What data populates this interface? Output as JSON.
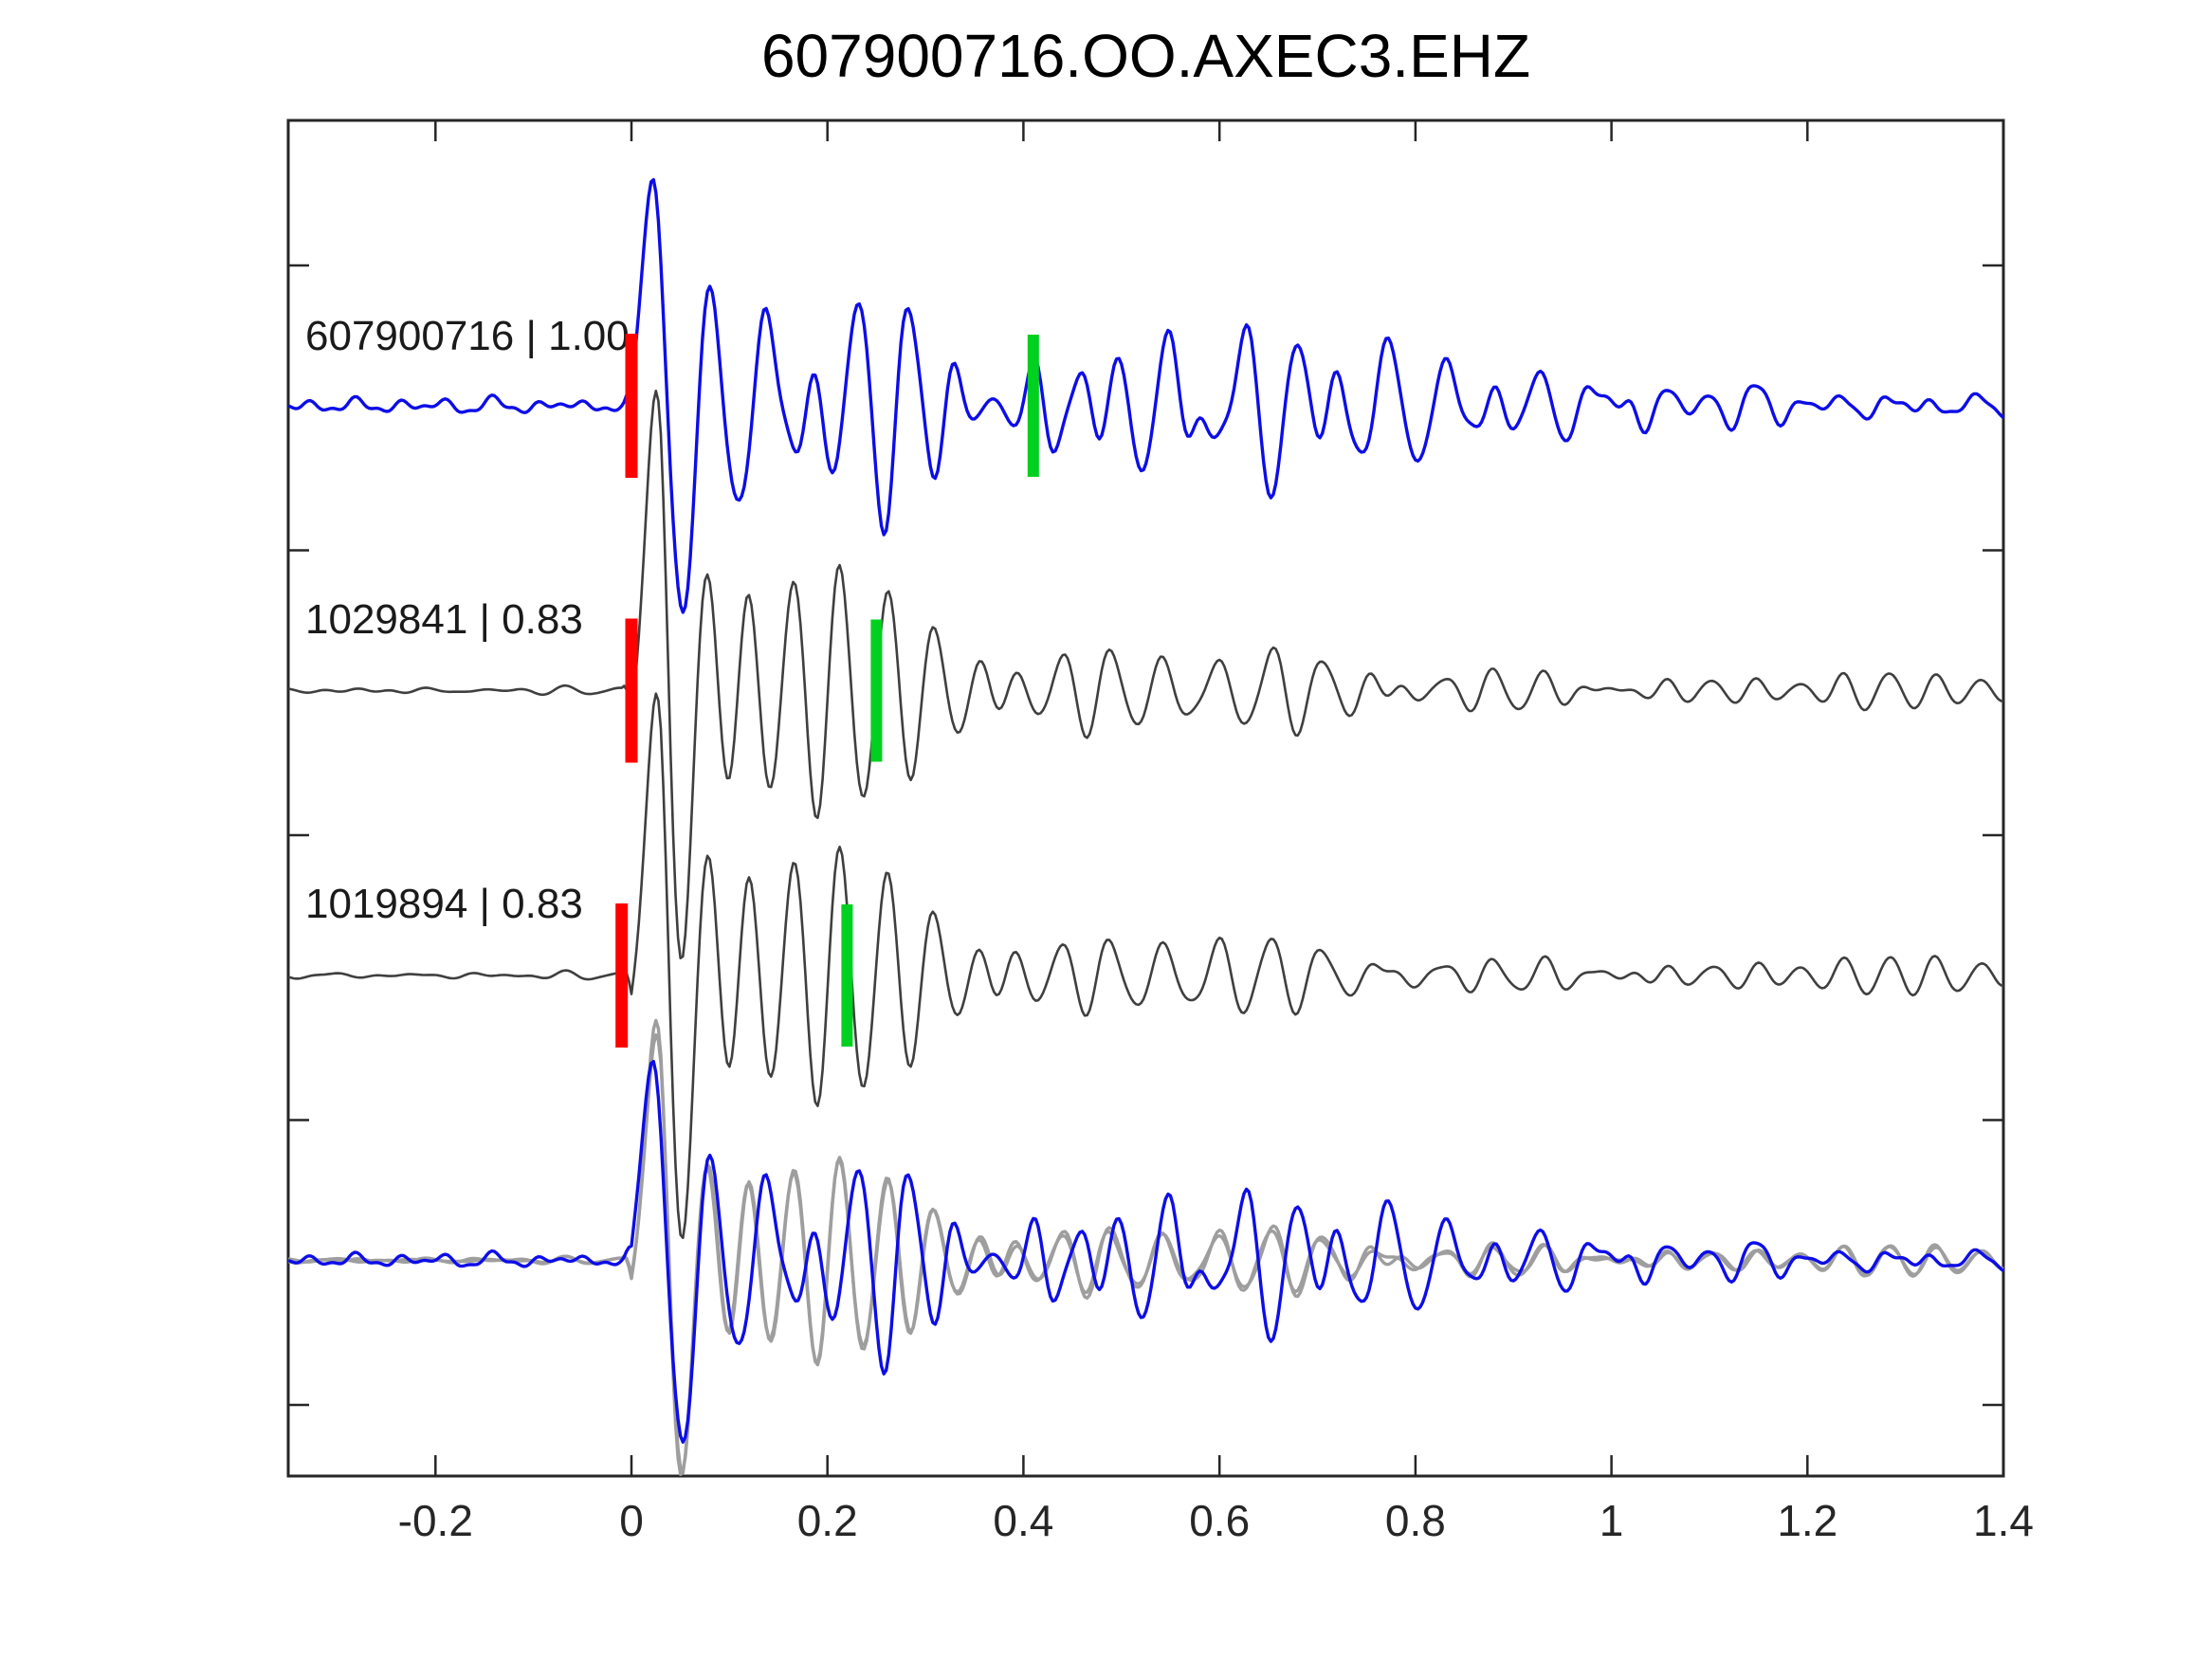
{
  "figure": {
    "title": "607900716.OO.AXEC3.EHZ"
  },
  "colors": {
    "background": "#ffffff",
    "axis": "#262626",
    "tick_text": "#262626",
    "template_blue": "#0d0de8",
    "detection_dark": "#3f3f3f",
    "overlay_gray": "#9e9e9e",
    "pick_red": "#ff0000",
    "pick_green": "#00d020"
  },
  "chart_data": {
    "type": "line",
    "title": "607900716.OO.AXEC3.EHZ",
    "xlabel": "",
    "ylabel": "",
    "xlim": [
      -0.35,
      1.4
    ],
    "x_ticks": [
      -0.2,
      0,
      0.2,
      0.4,
      0.6,
      0.8,
      1,
      1.2,
      1.4
    ],
    "x_tick_labels": [
      "-0.2",
      "0",
      "0.2",
      "0.4",
      "0.6",
      "0.8",
      "1",
      "1.2",
      "1.4"
    ],
    "y_tick_rows": [
      0,
      1,
      2,
      3,
      4
    ],
    "grid": false,
    "legend_position": "none",
    "description": "Template waveform 607900716 (blue), two matched detections (dark gray) with red pick and green pick markers, and bottom overlay of all aligned traces",
    "traces": [
      {
        "label": "607900716 | 1.00",
        "event_id": "607900716",
        "similarity": "1.00",
        "color_key": "template_blue",
        "row": 0,
        "picks": {
          "red": 0.0,
          "green": 0.41
        },
        "synth": {
          "seed": 9,
          "n": 7,
          "f_lo": 10,
          "f_hi": 26,
          "hi_comp": {
            "f": 36,
            "a": 0.33
          },
          "onset": {
            "a": 190,
            "f": 12,
            "c": 0.028,
            "w": 0.05
          },
          "pre": {
            "amp": 6.5,
            "f1": 21,
            "f2": 43
          },
          "jitter": 0,
          "env": [
            [
              -0.35,
              4
            ],
            [
              -0.008,
              4
            ],
            [
              0.012,
              80
            ],
            [
              0.03,
              130
            ],
            [
              0.1,
              110
            ],
            [
              0.17,
              150
            ],
            [
              0.25,
              120
            ],
            [
              0.35,
              110
            ],
            [
              0.45,
              105
            ],
            [
              0.55,
              110
            ],
            [
              0.62,
              95
            ],
            [
              0.68,
              100
            ],
            [
              0.75,
              75
            ],
            [
              0.85,
              55
            ],
            [
              0.95,
              45
            ],
            [
              1.02,
              55
            ],
            [
              1.1,
              30
            ],
            [
              1.2,
              18
            ],
            [
              1.3,
              12
            ],
            [
              1.4,
              10
            ]
          ]
        }
      },
      {
        "label": "1029841 | 0.83",
        "event_id": "1029841",
        "similarity": "0.83",
        "color_key": "detection_dark",
        "row": 1,
        "picks": {
          "red": 0.0,
          "green": 0.25
        },
        "synth": {
          "seed": 11,
          "n": 6,
          "f_lo": 17,
          "f_hi": 26,
          "hi_comp": {
            "f": 33,
            "a": 0.25
          },
          "onset": {
            "a": 255,
            "f": 14,
            "c": 0.026,
            "w": 0.04
          },
          "pre": {
            "amp": 2.5,
            "f1": 14,
            "f2": 29
          },
          "jitter": 0,
          "env": [
            [
              -0.35,
              3
            ],
            [
              -0.01,
              3
            ],
            [
              0.01,
              60
            ],
            [
              0.03,
              120
            ],
            [
              0.08,
              110
            ],
            [
              0.15,
              95
            ],
            [
              0.25,
              70
            ],
            [
              0.4,
              55
            ],
            [
              0.55,
              50
            ],
            [
              0.65,
              70
            ],
            [
              0.75,
              55
            ],
            [
              0.9,
              35
            ],
            [
              1.1,
              26
            ],
            [
              1.4,
              18
            ]
          ]
        }
      },
      {
        "label": "1019894 | 0.83",
        "event_id": "1019894",
        "similarity": "0.83",
        "color_key": "detection_dark",
        "row": 2,
        "picks": {
          "red": -0.01,
          "green": 0.22
        },
        "synth": {
          "seed": 11,
          "n": 6,
          "f_lo": 17,
          "f_hi": 26,
          "hi_comp": {
            "f": 33,
            "a": 0.25
          },
          "onset": {
            "a": 248,
            "f": 14,
            "c": 0.027,
            "w": 0.04
          },
          "pre": {
            "amp": 2.5,
            "f1": 13,
            "f2": 31
          },
          "jitter": 0.3,
          "env": [
            [
              -0.35,
              3
            ],
            [
              -0.01,
              3
            ],
            [
              0.01,
              58
            ],
            [
              0.03,
              116
            ],
            [
              0.08,
              107
            ],
            [
              0.15,
              92
            ],
            [
              0.25,
              68
            ],
            [
              0.4,
              53
            ],
            [
              0.55,
              49
            ],
            [
              0.65,
              68
            ],
            [
              0.75,
              53
            ],
            [
              0.9,
              34
            ],
            [
              1.1,
              25
            ],
            [
              1.4,
              18
            ]
          ]
        }
      }
    ],
    "overlay": {
      "row": 3,
      "members": [
        {
          "trace": 1,
          "color_key": "overlay_gray",
          "scale": 0.8
        },
        {
          "trace": 2,
          "color_key": "overlay_gray",
          "scale": 0.8
        },
        {
          "trace": 0,
          "color_key": "template_blue",
          "scale": 0.88
        }
      ]
    }
  }
}
